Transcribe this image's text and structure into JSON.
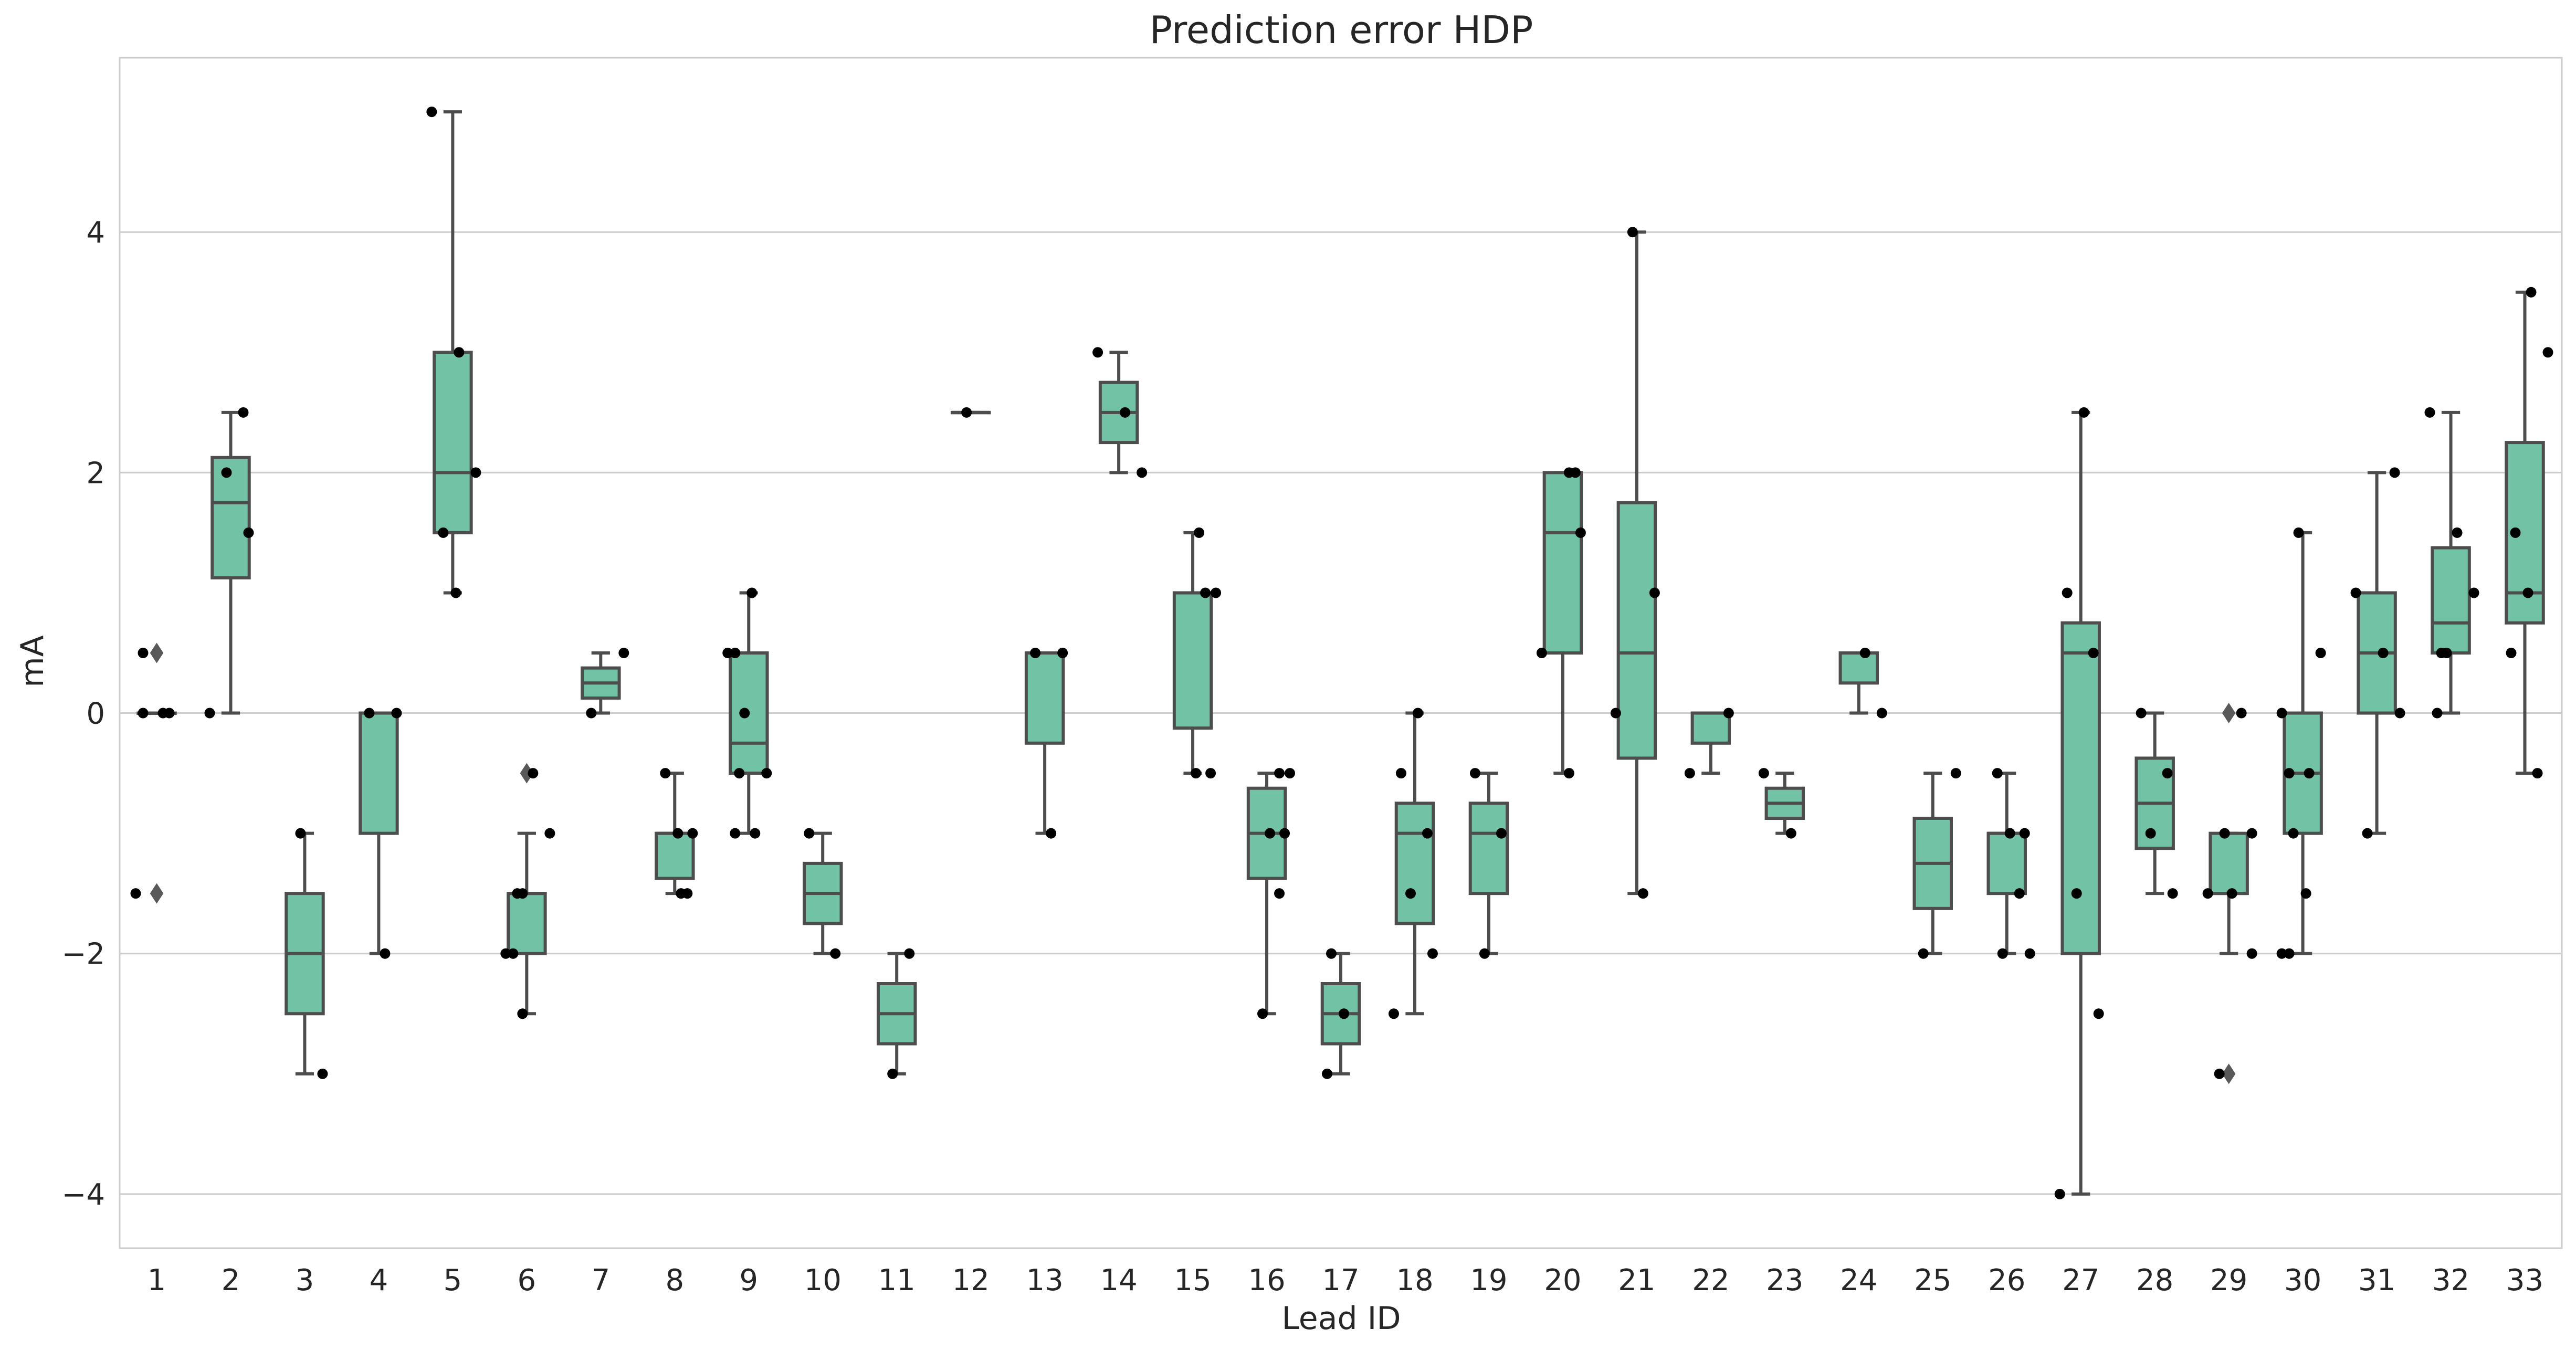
{
  "chart_data": {
    "type": "boxplot",
    "title": "Prediction error HDP",
    "xlabel": "Lead ID",
    "ylabel": "mA",
    "ylim": [
      -4.45,
      5.45
    ],
    "yticks": [
      -4,
      -2,
      0,
      2,
      4
    ],
    "ytick_labels": [
      "−4",
      "−2",
      "0",
      "2",
      "4"
    ],
    "grid": "horizontal",
    "colors": {
      "box_fill": "#72c2a5",
      "box_edge": "#4d4d4d",
      "point": "#000000",
      "outlier": "#595959",
      "grid": "#cccccc",
      "spine": "#cccccc",
      "text": "#262626"
    },
    "categories": [
      "1",
      "2",
      "3",
      "4",
      "5",
      "6",
      "7",
      "8",
      "9",
      "10",
      "11",
      "12",
      "13",
      "14",
      "15",
      "16",
      "17",
      "18",
      "19",
      "20",
      "21",
      "22",
      "23",
      "24",
      "25",
      "26",
      "27",
      "28",
      "29",
      "30",
      "31",
      "32",
      "33"
    ],
    "boxes": [
      {
        "q1": 0,
        "median": 0,
        "q3": 0,
        "whislo": 0,
        "whishi": 0,
        "fliers": [
          0.5,
          -1.5
        ],
        "points": [
          0.5,
          0,
          0,
          0,
          -1.5
        ]
      },
      {
        "q1": 1.125,
        "median": 1.75,
        "q3": 2.125,
        "whislo": 0,
        "whishi": 2.5,
        "fliers": [],
        "points": [
          2.5,
          2,
          1.5,
          0
        ]
      },
      {
        "q1": -2.5,
        "median": -2,
        "q3": -1.5,
        "whislo": -3,
        "whishi": -1,
        "fliers": [],
        "points": [
          -1,
          -3
        ]
      },
      {
        "q1": -1,
        "median": 0,
        "q3": 0,
        "whislo": -2,
        "whishi": 0,
        "fliers": [],
        "points": [
          0,
          0,
          -2
        ]
      },
      {
        "q1": 1.5,
        "median": 2,
        "q3": 3,
        "whislo": 1,
        "whishi": 5,
        "fliers": [],
        "points": [
          5,
          3,
          2,
          1.5,
          1
        ]
      },
      {
        "q1": -2,
        "median": -1.5,
        "q3": -1.5,
        "whislo": -2.5,
        "whishi": -1,
        "fliers": [
          -0.5
        ],
        "points": [
          -0.5,
          -1,
          -1.5,
          -1.5,
          -2,
          -2,
          -2.5
        ]
      },
      {
        "q1": 0.125,
        "median": 0.25,
        "q3": 0.375,
        "whislo": 0,
        "whishi": 0.5,
        "fliers": [],
        "points": [
          0.5,
          0
        ]
      },
      {
        "q1": -1.375,
        "median": -1,
        "q3": -1,
        "whislo": -1.5,
        "whishi": -0.5,
        "fliers": [],
        "points": [
          -0.5,
          -1,
          -1,
          -1.5,
          -1.5
        ]
      },
      {
        "q1": -0.5,
        "median": -0.25,
        "q3": 0.5,
        "whislo": -1,
        "whishi": 1,
        "fliers": [],
        "points": [
          1,
          0.5,
          0.5,
          0,
          -0.5,
          -0.5,
          -1,
          -1
        ]
      },
      {
        "q1": -1.75,
        "median": -1.5,
        "q3": -1.25,
        "whislo": -2,
        "whishi": -1,
        "fliers": [],
        "points": [
          -1,
          -2
        ]
      },
      {
        "q1": -2.75,
        "median": -2.5,
        "q3": -2.25,
        "whislo": -3,
        "whishi": -2,
        "fliers": [],
        "points": [
          -2,
          -3
        ]
      },
      {
        "q1": 2.5,
        "median": 2.5,
        "q3": 2.5,
        "whislo": 2.5,
        "whishi": 2.5,
        "fliers": [],
        "points": [
          2.5
        ]
      },
      {
        "q1": -0.25,
        "median": 0.5,
        "q3": 0.5,
        "whislo": -1,
        "whishi": 0.5,
        "fliers": [],
        "points": [
          0.5,
          0.5,
          -1
        ]
      },
      {
        "q1": 2.25,
        "median": 2.5,
        "q3": 2.75,
        "whislo": 2,
        "whishi": 3,
        "fliers": [],
        "points": [
          3,
          2.5,
          2
        ]
      },
      {
        "q1": -0.125,
        "median": 1,
        "q3": 1,
        "whislo": -0.5,
        "whishi": 1.5,
        "fliers": [],
        "points": [
          1.5,
          1,
          1,
          -0.5,
          -0.5
        ]
      },
      {
        "q1": -1.375,
        "median": -1,
        "q3": -0.625,
        "whislo": -2.5,
        "whishi": -0.5,
        "fliers": [],
        "points": [
          -0.5,
          -0.5,
          -1,
          -1,
          -1.5,
          -2.5
        ]
      },
      {
        "q1": -2.75,
        "median": -2.5,
        "q3": -2.25,
        "whislo": -3,
        "whishi": -2,
        "fliers": [],
        "points": [
          -2,
          -2.5,
          -3
        ]
      },
      {
        "q1": -1.75,
        "median": -1,
        "q3": -0.75,
        "whislo": -2.5,
        "whishi": 0,
        "fliers": [],
        "points": [
          0,
          -0.5,
          -1,
          -1.5,
          -2,
          -2.5
        ]
      },
      {
        "q1": -1.5,
        "median": -1,
        "q3": -0.75,
        "whislo": -2,
        "whishi": -0.5,
        "fliers": [],
        "points": [
          -0.5,
          -1,
          -2
        ]
      },
      {
        "q1": 0.5,
        "median": 1.5,
        "q3": 2,
        "whislo": -0.5,
        "whishi": 2,
        "fliers": [],
        "points": [
          2,
          2,
          1.5,
          0.5,
          -0.5
        ]
      },
      {
        "q1": -0.375,
        "median": 0.5,
        "q3": 1.75,
        "whislo": -1.5,
        "whishi": 4,
        "fliers": [],
        "points": [
          4,
          1,
          0,
          -1.5
        ]
      },
      {
        "q1": -0.25,
        "median": 0,
        "q3": 0,
        "whislo": -0.5,
        "whishi": 0,
        "fliers": [],
        "points": [
          0,
          -0.5
        ]
      },
      {
        "q1": -0.875,
        "median": -0.75,
        "q3": -0.625,
        "whislo": -1,
        "whishi": -0.5,
        "fliers": [],
        "points": [
          -0.5,
          -1
        ]
      },
      {
        "q1": 0.25,
        "median": 0.5,
        "q3": 0.5,
        "whislo": 0,
        "whishi": 0.5,
        "fliers": [],
        "points": [
          0.5,
          0
        ]
      },
      {
        "q1": -1.625,
        "median": -1.25,
        "q3": -0.875,
        "whislo": -2,
        "whishi": -0.5,
        "fliers": [],
        "points": [
          -0.5,
          -2
        ]
      },
      {
        "q1": -1.5,
        "median": -1,
        "q3": -1,
        "whislo": -2,
        "whishi": -0.5,
        "fliers": [],
        "points": [
          -0.5,
          -1,
          -1,
          -1.5,
          -2,
          -2
        ]
      },
      {
        "q1": -2,
        "median": 0.5,
        "q3": 0.75,
        "whislo": -4,
        "whishi": 2.5,
        "fliers": [],
        "points": [
          2.5,
          1,
          0.5,
          -1.5,
          -2.5,
          -4
        ]
      },
      {
        "q1": -1.125,
        "median": -0.75,
        "q3": -0.375,
        "whislo": -1.5,
        "whishi": 0,
        "fliers": [],
        "points": [
          0,
          -0.5,
          -1,
          -1.5
        ]
      },
      {
        "q1": -1.5,
        "median": -1.5,
        "q3": -1,
        "whislo": -2,
        "whishi": -1,
        "fliers": [
          0,
          -3
        ],
        "points": [
          0,
          -1,
          -1,
          -1.5,
          -1.5,
          -2,
          -3
        ]
      },
      {
        "q1": -1,
        "median": -0.5,
        "q3": 0,
        "whislo": -2,
        "whishi": 1.5,
        "fliers": [],
        "points": [
          1.5,
          0.5,
          0,
          -0.5,
          -0.5,
          -1,
          -1.5,
          -2,
          -2
        ]
      },
      {
        "q1": 0,
        "median": 0.5,
        "q3": 1,
        "whislo": -1,
        "whishi": 2,
        "fliers": [],
        "points": [
          2,
          1,
          0.5,
          0,
          -1
        ]
      },
      {
        "q1": 0.5,
        "median": 0.75,
        "q3": 1.375,
        "whislo": 0,
        "whishi": 2.5,
        "fliers": [],
        "points": [
          2.5,
          1.5,
          1,
          0.5,
          0.5,
          0
        ]
      },
      {
        "q1": 0.75,
        "median": 1,
        "q3": 2.25,
        "whislo": -0.5,
        "whishi": 3.5,
        "fliers": [],
        "points": [
          3.5,
          3,
          1.5,
          1,
          0.5,
          -0.5
        ]
      }
    ]
  }
}
